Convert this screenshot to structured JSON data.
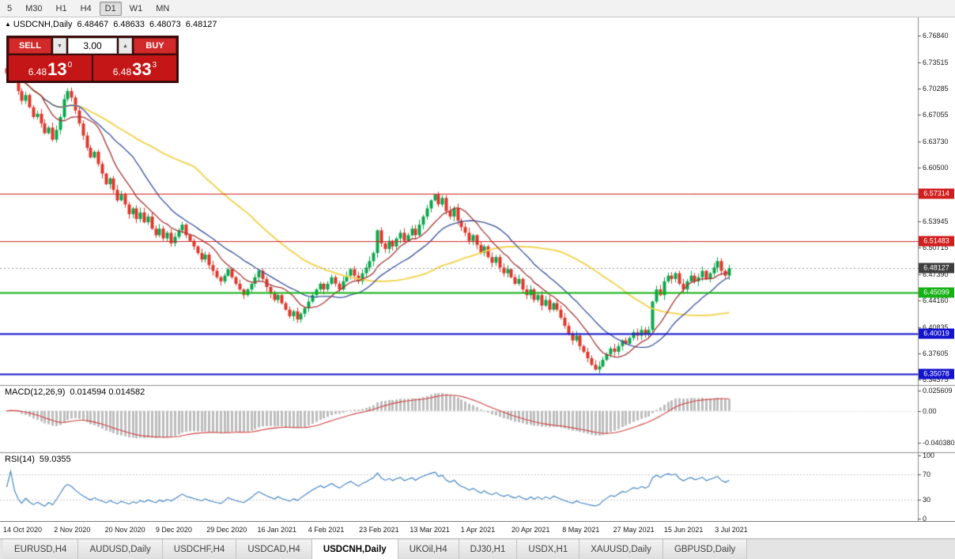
{
  "toolbar": {
    "timeframes": [
      {
        "label": "5"
      },
      {
        "label": "M30"
      },
      {
        "label": "H1"
      },
      {
        "label": "H4"
      },
      {
        "label": "D1",
        "active": true
      },
      {
        "label": "W1"
      },
      {
        "label": "MN"
      }
    ]
  },
  "chart": {
    "title": "USDCNH,Daily",
    "ohlc": {
      "open": "6.48467",
      "high": "6.48633",
      "low": "6.48073",
      "close": "6.48127"
    },
    "trade_panel": {
      "sell_label": "SELL",
      "buy_label": "BUY",
      "volume": "3.00",
      "bid": {
        "prefix": "6.48",
        "big": "13",
        "sup": "0"
      },
      "ask": {
        "prefix": "6.48",
        "big": "33",
        "sup": "3"
      }
    },
    "hlines": [
      {
        "price": 6.57314,
        "color": "#d01f1f",
        "width": 1
      },
      {
        "price": 6.51483,
        "color": "#d01f1f",
        "width": 1
      },
      {
        "price": 6.45099,
        "color": "#15b115",
        "width": 2
      },
      {
        "price": 6.40019,
        "color": "#1414cc",
        "width": 2
      },
      {
        "price": 6.35078,
        "color": "#1414cc",
        "width": 2
      }
    ],
    "current_price": {
      "value": 6.48127,
      "tag_color": "#3f3f3f"
    },
    "axis_labels": [
      6.7684,
      6.73515,
      6.70285,
      6.67055,
      6.6373,
      6.605,
      6.53945,
      6.50715,
      6.4739,
      6.4416,
      6.40835,
      6.37605,
      6.34375
    ]
  },
  "macd_panel": {
    "label": "MACD(12,26,9)",
    "values": "0.014594 0.014582",
    "axis": [
      {
        "text": "0.025609",
        "value": 0.025609
      },
      {
        "text": "0.00",
        "value": 0
      },
      {
        "text": "-0.040380",
        "value": -0.04038
      }
    ]
  },
  "rsi_panel": {
    "label": "RSI(14)",
    "value": "59.0355",
    "axis": [
      {
        "text": "100",
        "value": 100
      },
      {
        "text": "70",
        "value": 70
      },
      {
        "text": "30",
        "value": 30
      },
      {
        "text": "0",
        "value": 0
      }
    ]
  },
  "time_axis": {
    "labels": [
      "14 Oct 2020",
      "2 Nov 2020",
      "20 Nov 2020",
      "9 Dec 2020",
      "29 Dec 2020",
      "16 Jan 2021",
      "4 Feb 2021",
      "23 Feb 2021",
      "13 Mar 2021",
      "1 Apr 2021",
      "20 Apr 2021",
      "8 May 2021",
      "27 May 2021",
      "15 Jun 2021",
      "3 Jul 2021"
    ]
  },
  "tabs": [
    {
      "label": "EURUSD,H4"
    },
    {
      "label": "AUDUSD,Daily"
    },
    {
      "label": "USDCHF,H4"
    },
    {
      "label": "USDCAD,H4"
    },
    {
      "label": "USDCNH,Daily",
      "active": true
    },
    {
      "label": "UKOil,H4"
    },
    {
      "label": "DJ30,H1"
    },
    {
      "label": "USDX,H1"
    },
    {
      "label": "XAUUSD,Daily"
    },
    {
      "label": "GBPUSD,Daily"
    }
  ],
  "chart_data": {
    "type": "candlestick",
    "symbol": "USDCNH",
    "timeframe": "Daily",
    "title": "USDCNH,Daily 6.48467 6.48633 6.48073 6.48127",
    "x_range": [
      "14 Oct 2020",
      "3 Jul 2021"
    ],
    "ylim": [
      6.3369,
      6.791
    ],
    "closes": [
      6.722,
      6.735,
      6.718,
      6.7,
      6.688,
      6.695,
      6.68,
      6.668,
      6.672,
      6.66,
      6.648,
      6.655,
      6.64,
      6.652,
      6.668,
      6.69,
      6.7,
      6.692,
      6.676,
      6.66,
      6.645,
      6.63,
      6.618,
      6.625,
      6.61,
      6.598,
      6.585,
      6.592,
      6.578,
      6.565,
      6.572,
      6.56,
      6.548,
      6.555,
      6.542,
      6.55,
      6.538,
      6.545,
      6.53,
      6.522,
      6.53,
      6.518,
      6.525,
      6.512,
      6.52,
      6.528,
      6.535,
      6.522,
      6.515,
      6.508,
      6.5,
      6.492,
      6.498,
      6.485,
      6.478,
      6.47,
      6.465,
      6.472,
      6.48,
      6.47,
      6.462,
      6.455,
      6.448,
      6.455,
      6.462,
      6.47,
      6.478,
      6.468,
      6.458,
      6.45,
      6.442,
      6.448,
      6.438,
      6.43,
      6.422,
      6.428,
      6.418,
      6.425,
      6.432,
      6.44,
      6.448,
      6.455,
      6.462,
      6.455,
      6.462,
      6.47,
      6.462,
      6.455,
      6.465,
      6.472,
      6.48,
      6.472,
      6.465,
      6.475,
      6.482,
      6.49,
      6.5,
      6.528,
      6.512,
      6.505,
      6.515,
      6.508,
      6.518,
      6.525,
      6.515,
      6.522,
      6.53,
      6.522,
      6.535,
      6.545,
      6.555,
      6.565,
      6.572,
      6.56,
      6.568,
      6.552,
      6.545,
      6.555,
      6.54,
      6.532,
      6.525,
      6.515,
      6.522,
      6.51,
      6.5,
      6.508,
      6.495,
      6.488,
      6.495,
      6.482,
      6.475,
      6.48,
      6.47,
      6.462,
      6.468,
      6.455,
      6.448,
      6.455,
      6.442,
      6.448,
      6.435,
      6.442,
      6.43,
      6.438,
      6.43,
      6.42,
      6.41,
      6.4,
      6.392,
      6.398,
      6.385,
      6.378,
      6.37,
      6.362,
      6.356,
      6.36,
      6.368,
      6.375,
      6.382,
      6.378,
      6.385,
      6.392,
      6.388,
      6.395,
      6.402,
      6.398,
      6.405,
      6.4,
      6.405,
      6.44,
      6.455,
      6.448,
      6.465,
      6.472,
      6.468,
      6.475,
      6.462,
      6.455,
      6.465,
      6.472,
      6.465,
      6.47,
      6.478,
      6.468,
      6.475,
      6.482,
      6.49,
      6.478,
      6.472,
      6.4813
    ],
    "overlays": {
      "ma_fast": {
        "period": 10,
        "color": "#a63636"
      },
      "ma_mid": {
        "period": 20,
        "color": "#36509e"
      },
      "ma_slow": {
        "period": 50,
        "color": "#f2d556"
      }
    },
    "macd": {
      "fast": 12,
      "slow": 26,
      "signal": 9,
      "hist_color": "#bdbdbd",
      "signal_color": "#d04040",
      "ylim": [
        -0.0524,
        0.0326
      ]
    },
    "rsi": {
      "period": 14,
      "color": "#3a7fc1",
      "levels": [
        30,
        70
      ],
      "ylim": [
        -3.75,
        105
      ]
    },
    "candle_up_color": "#0aa64b",
    "candle_down_color": "#e0362a"
  }
}
